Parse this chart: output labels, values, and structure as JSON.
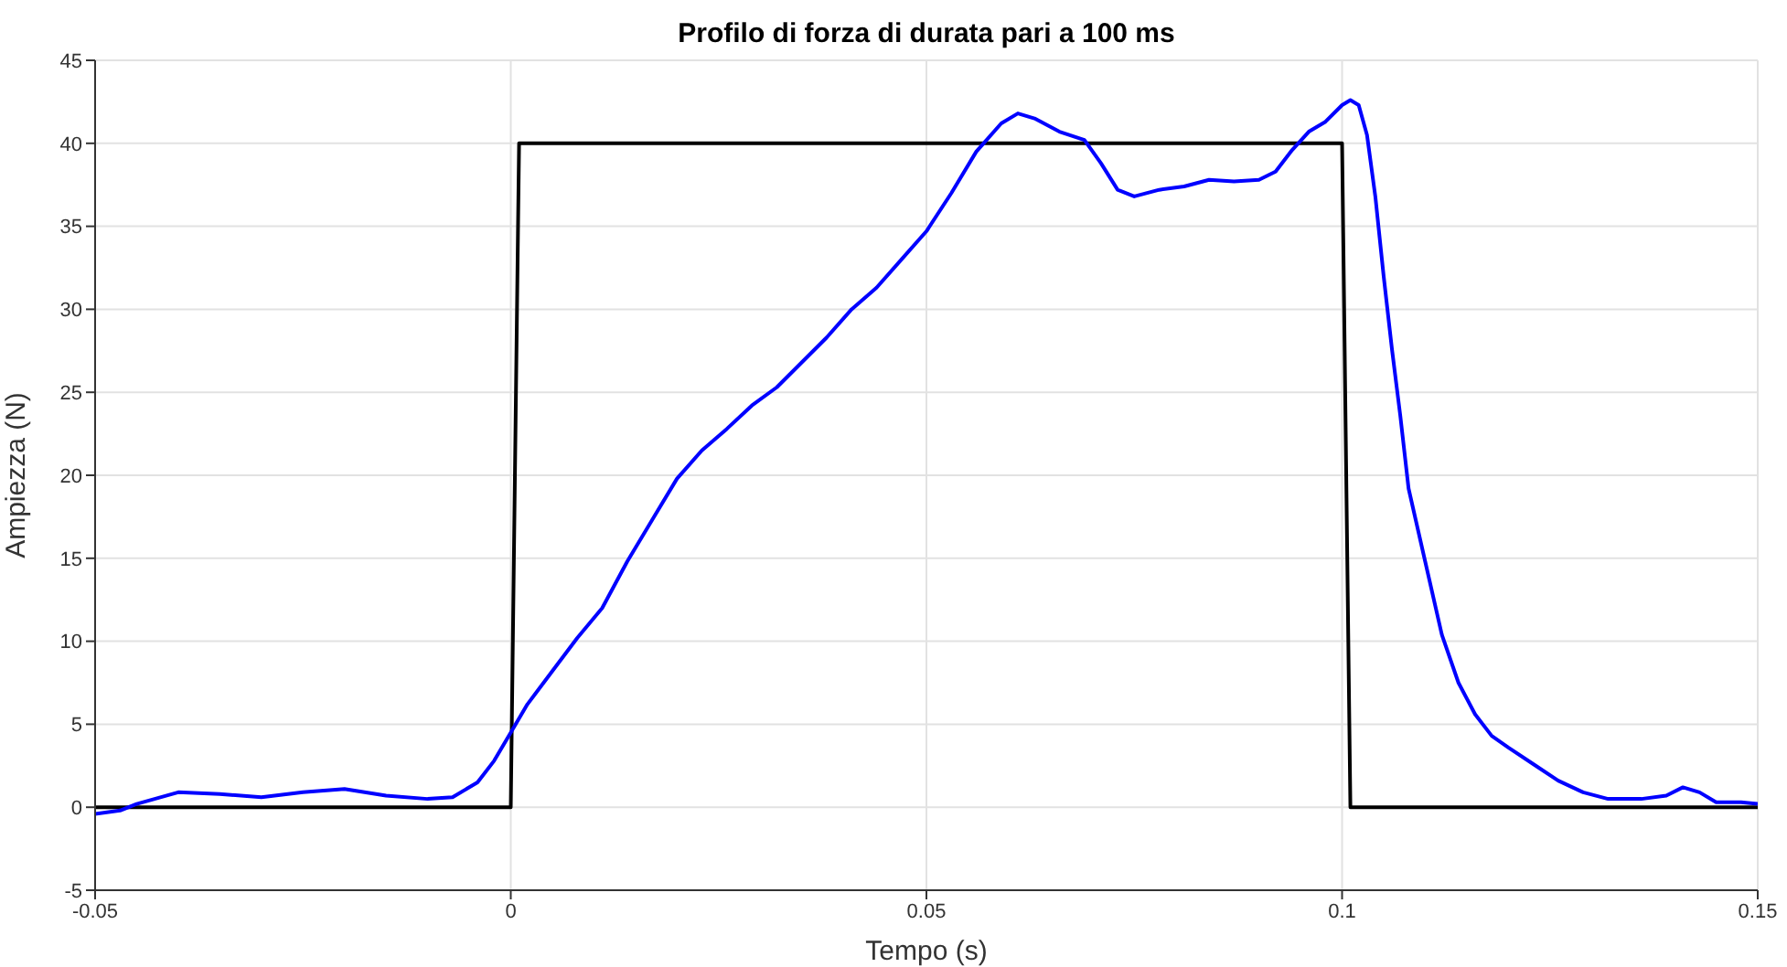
{
  "chart_data": {
    "type": "line",
    "title": "Profilo di forza di durata pari a 100 ms",
    "xlabel": "Tempo (s)",
    "ylabel": "Ampiezza (N)",
    "xlim": [
      -0.05,
      0.15
    ],
    "xticks": [
      -0.05,
      0,
      0.05,
      0.1,
      0.15
    ],
    "ylim": [
      -5,
      45
    ],
    "yticks": [
      -5,
      0,
      5,
      10,
      15,
      20,
      25,
      30,
      35,
      40,
      45
    ],
    "grid": true,
    "marker": "none",
    "line_style": "solid",
    "series": [
      {
        "color": "#000000",
        "x": [
          -0.05,
          0,
          0.001,
          0.1,
          0.101,
          0.15
        ],
        "values": [
          0,
          0,
          40,
          40,
          0,
          0
        ]
      },
      {
        "color": "#0000ff",
        "x": [
          -0.05,
          -0.047,
          -0.045,
          -0.04,
          -0.035,
          -0.03,
          -0.025,
          -0.02,
          -0.015,
          -0.01,
          -0.007,
          -0.004,
          -0.002,
          0,
          0.002,
          0.005,
          0.008,
          0.011,
          0.014,
          0.017,
          0.02,
          0.023,
          0.026,
          0.029,
          0.032,
          0.035,
          0.038,
          0.041,
          0.044,
          0.047,
          0.05,
          0.053,
          0.056,
          0.059,
          0.061,
          0.063,
          0.066,
          0.069,
          0.071,
          0.073,
          0.075,
          0.078,
          0.081,
          0.084,
          0.087,
          0.09,
          0.092,
          0.094,
          0.096,
          0.098,
          0.1,
          0.101,
          0.102,
          0.103,
          0.104,
          0.105,
          0.106,
          0.107,
          0.108,
          0.11,
          0.112,
          0.114,
          0.116,
          0.118,
          0.12,
          0.123,
          0.126,
          0.129,
          0.132,
          0.136,
          0.139,
          0.141,
          0.143,
          0.145,
          0.148,
          0.15
        ],
        "values": [
          -0.4,
          -0.2,
          0.2,
          0.9,
          0.8,
          0.6,
          0.9,
          1.1,
          0.7,
          0.5,
          0.6,
          1.5,
          2.8,
          4.5,
          6.2,
          8.2,
          10.2,
          12,
          14.8,
          17.3,
          19.8,
          21.5,
          22.8,
          24.2,
          25.3,
          26.8,
          28.3,
          30,
          31.3,
          33,
          34.7,
          37,
          39.5,
          41.2,
          41.8,
          41.5,
          40.7,
          40.2,
          38.8,
          37.2,
          36.8,
          37.2,
          37.4,
          37.8,
          37.7,
          37.8,
          38.3,
          39.6,
          40.7,
          41.3,
          42.3,
          42.6,
          42.3,
          40.5,
          36.8,
          32,
          27.6,
          23.6,
          19.2,
          14.8,
          10.4,
          7.5,
          5.6,
          4.3,
          3.6,
          2.6,
          1.6,
          0.9,
          0.5,
          0.5,
          0.7,
          1.2,
          0.9,
          0.3,
          0.3,
          0.2
        ]
      }
    ]
  }
}
